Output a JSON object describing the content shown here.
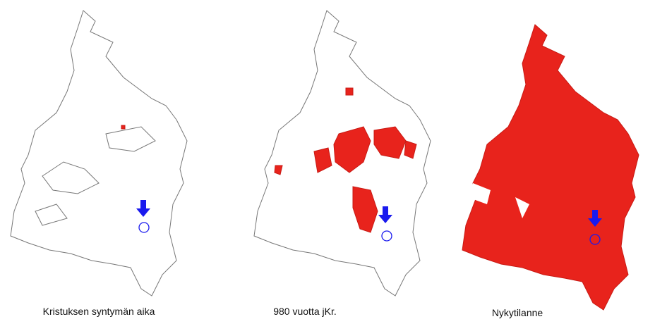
{
  "panels": [
    {
      "caption": "Kristuksen syntymän aika"
    },
    {
      "caption": "980 vuotta jKr."
    },
    {
      "caption": "Nykytilanne"
    }
  ]
}
